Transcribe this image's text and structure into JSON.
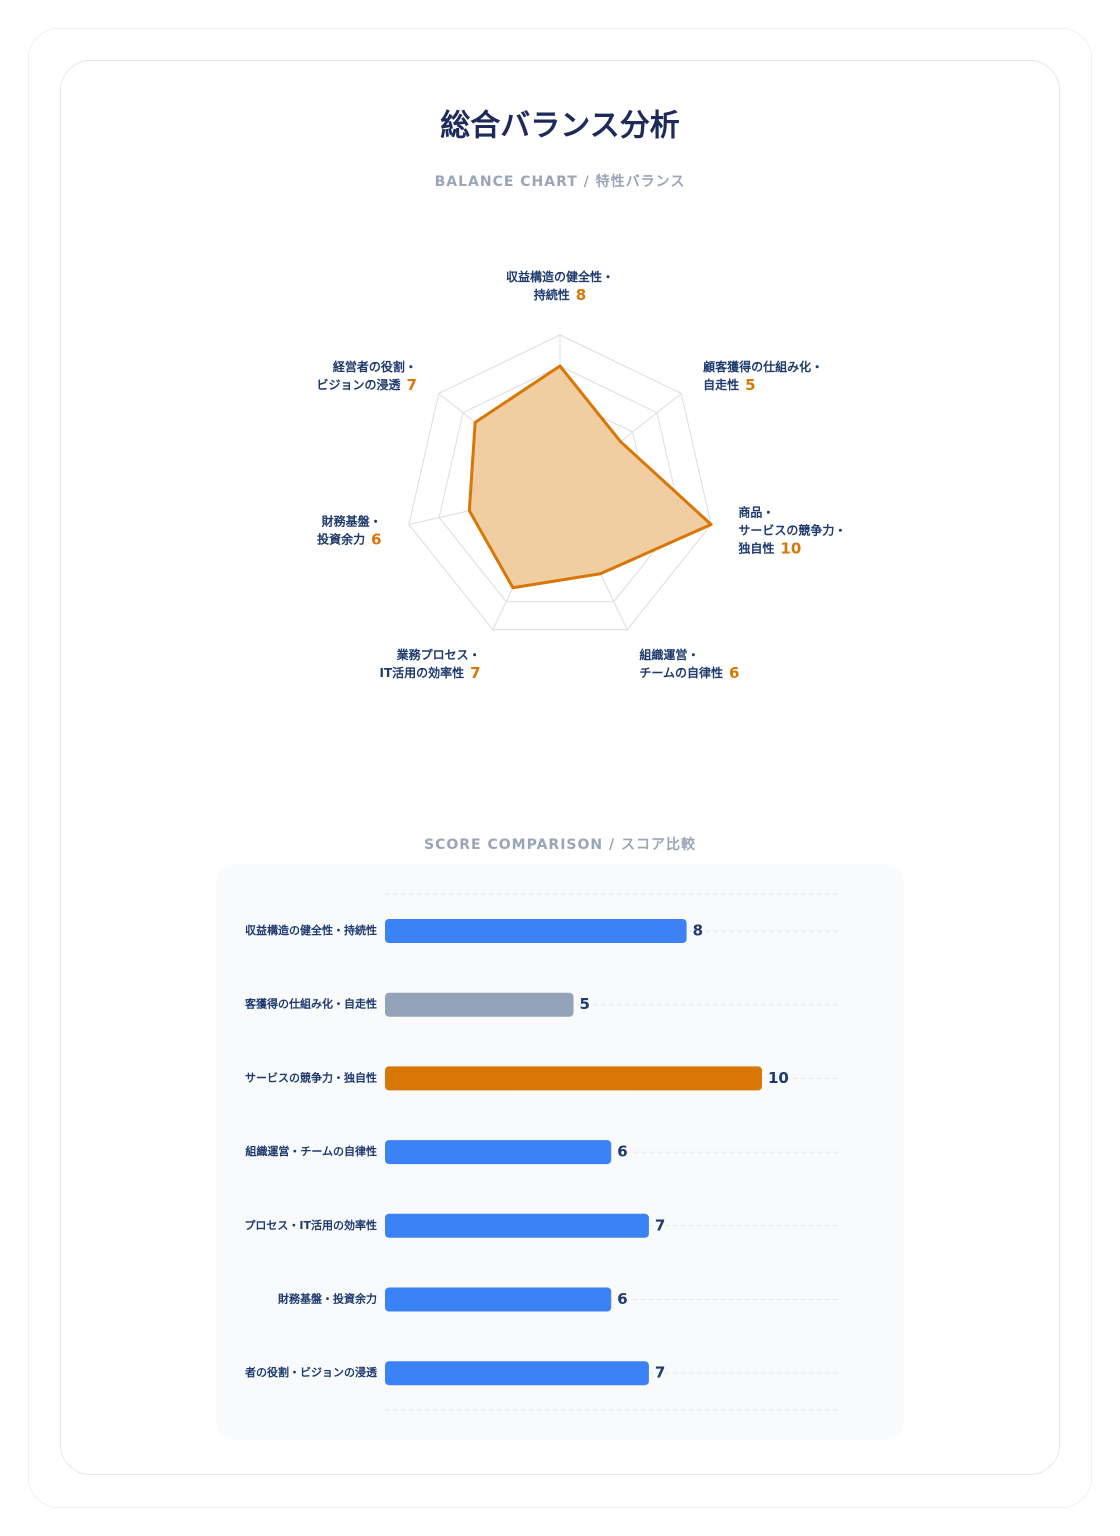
{
  "title": "総合バランス分析",
  "chart_data": [
    {
      "type": "radar",
      "subtitle": "BALANCE CHART / 特性バランス",
      "categories": [
        [
          "収益構造の健全性・",
          "持続性"
        ],
        [
          "顧客獲得の仕組み化・",
          "自走性"
        ],
        [
          "商品・",
          "サービスの競争力・",
          "独自性"
        ],
        [
          "組織運営・",
          "チームの自律性"
        ],
        [
          "業務プロセス・",
          "IT活用の効率性"
        ],
        [
          "財務基盤・",
          "投資余力"
        ],
        [
          "経営者の役割・",
          "ビジョンの浸透"
        ]
      ],
      "values": [
        8,
        5,
        10,
        6,
        7,
        6,
        7
      ],
      "color": "#d97706",
      "fill": "#f0c998",
      "ylim": [
        0,
        10
      ],
      "yticks": [
        2,
        4,
        6,
        8,
        10
      ],
      "grid": true
    },
    {
      "type": "barh",
      "subtitle": "SCORE COMPARISON / スコア比較",
      "categories": [
        "収益構造の健全性・持続性",
        "客獲得の仕組み化・自走性",
        "サービスの競争力・独自性",
        "組織運営・チームの自律性",
        "プロセス・IT活用の効率性",
        "財務基盤・投資余力",
        "者の役割・ビジョンの浸透"
      ],
      "values": [
        8,
        5,
        10,
        6,
        7,
        6,
        7
      ],
      "colors": [
        "#3b82f6",
        "#94a3b8",
        "#d97706",
        "#3b82f6",
        "#3b82f6",
        "#3b82f6",
        "#3b82f6"
      ],
      "xlim": [
        0,
        10
      ]
    }
  ]
}
